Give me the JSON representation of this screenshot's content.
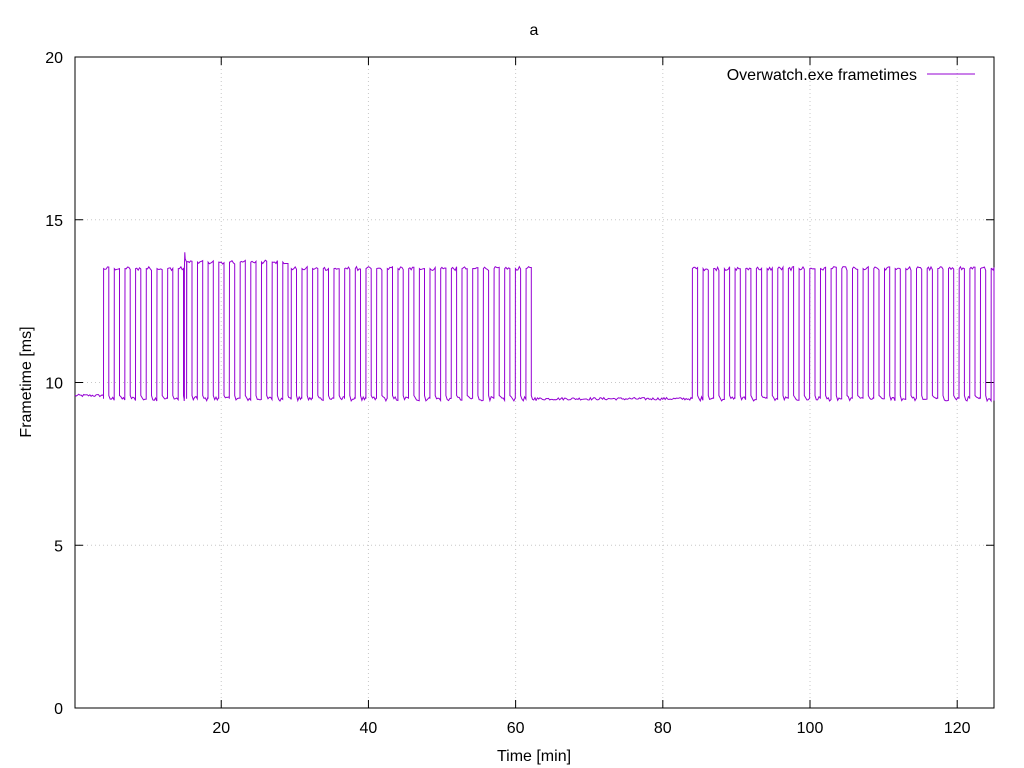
{
  "chart_data": {
    "type": "line",
    "title": "a",
    "xlabel": "Time [min]",
    "ylabel": "Frametime [ms]",
    "xlim": [
      0.13,
      125
    ],
    "ylim": [
      0,
      20
    ],
    "xticks": [
      20,
      40,
      60,
      80,
      100,
      120
    ],
    "yticks": [
      0,
      5,
      10,
      15,
      20
    ],
    "grid": true,
    "legend_position": "top-right",
    "series": [
      {
        "name": "Overwatch.exe frametimes",
        "color": "#9400d3",
        "baseline_ms": 9.5,
        "peak_ms": 13.5,
        "segments": [
          {
            "x_start": 0.13,
            "x_end": 4.0,
            "pattern": "flat",
            "y": 9.6
          },
          {
            "x_start": 4.0,
            "x_end": 15.0,
            "pattern": "square",
            "period_min": 1.45,
            "high_ms": 13.5,
            "low_ms": 9.5
          },
          {
            "x_start": 15.0,
            "x_end": 15.3,
            "pattern": "spike",
            "peak_ms": 14.0
          },
          {
            "x_start": 15.3,
            "x_end": 29.5,
            "pattern": "square",
            "period_min": 1.45,
            "high_ms": 13.7,
            "low_ms": 9.5
          },
          {
            "x_start": 29.5,
            "x_end": 62.8,
            "pattern": "square",
            "period_min": 1.45,
            "high_ms": 13.5,
            "low_ms": 9.5
          },
          {
            "x_start": 62.8,
            "x_end": 84.0,
            "pattern": "flat",
            "y": 9.5
          },
          {
            "x_start": 84.0,
            "x_end": 125.0,
            "pattern": "square",
            "period_min": 1.45,
            "high_ms": 13.5,
            "low_ms": 9.5
          }
        ]
      }
    ]
  }
}
